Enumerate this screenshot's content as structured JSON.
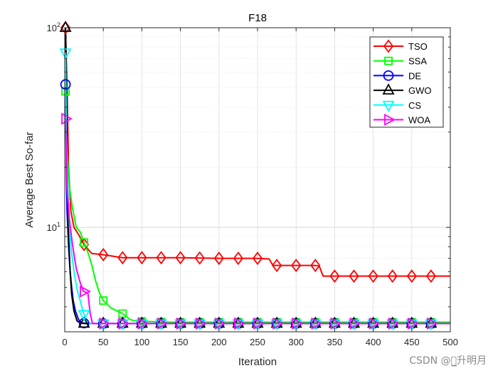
{
  "chart_data": {
    "type": "line",
    "title": "F18",
    "xlabel": "Iteration",
    "ylabel": "Average Best So-far",
    "yscale": "log",
    "xlim": [
      0,
      500
    ],
    "ylim": [
      3,
      100
    ],
    "grid": true,
    "legend_location": "top-right",
    "x_ticks": [
      0,
      50,
      100,
      150,
      200,
      250,
      300,
      350,
      400,
      450,
      500
    ],
    "x_tick_labels": [
      "0",
      "50",
      "100",
      "150",
      "200",
      "250",
      "300",
      "350",
      "400",
      "450",
      "500"
    ],
    "y_ticks": [
      10,
      100
    ],
    "y_tick_labels": [
      {
        "base": "10",
        "exp": "1"
      },
      {
        "base": "10",
        "exp": "2"
      }
    ],
    "marker_x": [
      1,
      25,
      50,
      75,
      100,
      125,
      150,
      175,
      200,
      225,
      250,
      275,
      300,
      325,
      350,
      375,
      400,
      425,
      450,
      475
    ],
    "series": [
      {
        "name": "TSO",
        "color": "#ff0000",
        "marker": "diamond",
        "x": [
          1,
          3,
          5,
          8,
          12,
          18,
          25,
          35,
          50,
          75,
          100,
          150,
          200,
          250,
          265,
          270,
          300,
          325,
          330,
          335,
          350,
          400,
          500
        ],
        "y": [
          100,
          50,
          20,
          12,
          10,
          9.2,
          8.2,
          7.4,
          7.3,
          7.05,
          7.05,
          7.05,
          7.0,
          7.0,
          6.95,
          6.45,
          6.45,
          6.45,
          6.4,
          5.7,
          5.7,
          5.7,
          5.7
        ]
      },
      {
        "name": "SSA",
        "color": "#00ff00",
        "marker": "square",
        "x": [
          1,
          3,
          6,
          10,
          15,
          20,
          25,
          30,
          35,
          40,
          45,
          50,
          60,
          75,
          85,
          95,
          110,
          130,
          500
        ],
        "y": [
          48,
          25,
          16,
          12.5,
          10,
          9.5,
          8.4,
          7.5,
          6.5,
          5.4,
          4.7,
          4.3,
          3.95,
          3.7,
          3.45,
          3.38,
          3.38,
          3.35,
          3.35
        ]
      },
      {
        "name": "DE",
        "color": "#0000ff",
        "marker": "circle",
        "x": [
          1,
          2,
          3,
          5,
          7,
          9,
          11,
          14,
          18,
          22,
          28,
          35,
          500
        ],
        "y": [
          52,
          20,
          12,
          8,
          6,
          5,
          4.3,
          3.8,
          3.45,
          3.33,
          3.3,
          3.3,
          3.3
        ]
      },
      {
        "name": "GWO",
        "color": "#000000",
        "marker": "triangle-up",
        "x": [
          1,
          2,
          3,
          4,
          5,
          7,
          9,
          12,
          16,
          20,
          25,
          30,
          500
        ],
        "y": [
          100,
          60,
          25,
          14,
          9,
          6,
          4.6,
          3.8,
          3.4,
          3.33,
          3.3,
          3.3,
          3.3
        ]
      },
      {
        "name": "CS",
        "color": "#00ffff",
        "marker": "triangle-down",
        "x": [
          1,
          2,
          4,
          6,
          8,
          12,
          16,
          20,
          24,
          28,
          32,
          500
        ],
        "y": [
          75,
          30,
          15,
          10.5,
          8,
          6,
          4.9,
          4.3,
          3.75,
          3.45,
          3.3,
          3.3
        ]
      },
      {
        "name": "WOA",
        "color": "#ff00ff",
        "marker": "triangle-right",
        "x": [
          1,
          3,
          6,
          10,
          15,
          20,
          24,
          26,
          30,
          33,
          36,
          40,
          500
        ],
        "y": [
          35,
          16,
          11,
          8.2,
          6.2,
          5.3,
          4.8,
          4.75,
          4.7,
          3.7,
          3.3,
          3.3,
          3.3
        ]
      }
    ]
  },
  "watermark": "CSDN @心̲升明月"
}
